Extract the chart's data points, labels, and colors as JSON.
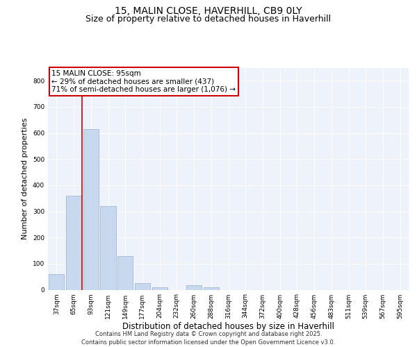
{
  "title1": "15, MALIN CLOSE, HAVERHILL, CB9 0LY",
  "title2": "Size of property relative to detached houses in Haverhill",
  "xlabel": "Distribution of detached houses by size in Haverhill",
  "ylabel": "Number of detached properties",
  "categories": [
    "37sqm",
    "65sqm",
    "93sqm",
    "121sqm",
    "149sqm",
    "177sqm",
    "204sqm",
    "232sqm",
    "260sqm",
    "288sqm",
    "316sqm",
    "344sqm",
    "372sqm",
    "400sqm",
    "428sqm",
    "456sqm",
    "483sqm",
    "511sqm",
    "539sqm",
    "567sqm",
    "595sqm"
  ],
  "values": [
    60,
    360,
    615,
    320,
    130,
    25,
    8,
    0,
    18,
    8,
    0,
    0,
    0,
    0,
    0,
    0,
    0,
    0,
    0,
    0,
    0
  ],
  "bar_color": "#c8d8ee",
  "bar_edge_color": "#9ab0cc",
  "vline_x": 1.5,
  "vline_color": "#cc0000",
  "annotation_text": "15 MALIN CLOSE: 95sqm\n← 29% of detached houses are smaller (437)\n71% of semi-detached houses are larger (1,076) →",
  "annotation_box_color": "#ffffff",
  "annotation_box_edge": "#cc0000",
  "ylim": [
    0,
    850
  ],
  "yticks": [
    0,
    100,
    200,
    300,
    400,
    500,
    600,
    700,
    800
  ],
  "footer": "Contains HM Land Registry data © Crown copyright and database right 2025.\nContains public sector information licensed under the Open Government Licence v3.0.",
  "bg_color": "#eef2fb",
  "grid_color": "#ffffff",
  "title1_fontsize": 10,
  "title2_fontsize": 9,
  "ylabel_fontsize": 8,
  "xlabel_fontsize": 8.5,
  "tick_fontsize": 6.5,
  "footer_fontsize": 6,
  "ann_fontsize": 7.5
}
